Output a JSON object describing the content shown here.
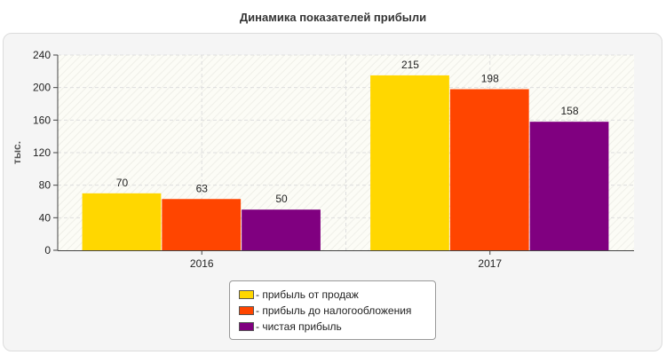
{
  "chart_data": {
    "type": "bar",
    "title": "Динамика показателей прибыли",
    "ylabel": "тыс.",
    "xlabel": "",
    "categories": [
      "2016",
      "2017"
    ],
    "ylim": [
      0,
      240
    ],
    "yticks": [
      0,
      40,
      80,
      120,
      160,
      200,
      240
    ],
    "grid": true,
    "legend_position": "bottom",
    "series": [
      {
        "name": "- прибыль от продаж",
        "color": "#FFD700",
        "values": [
          70,
          215
        ],
        "labels": [
          "70",
          "215"
        ]
      },
      {
        "name": "- прибыль до налогообложения",
        "color": "#FF4500",
        "values": [
          63,
          198
        ],
        "labels": [
          "63",
          "198"
        ]
      },
      {
        "name": "- чистая прибыль",
        "color": "#800080",
        "values": [
          50,
          158
        ],
        "labels": [
          "50",
          "158"
        ]
      }
    ]
  }
}
